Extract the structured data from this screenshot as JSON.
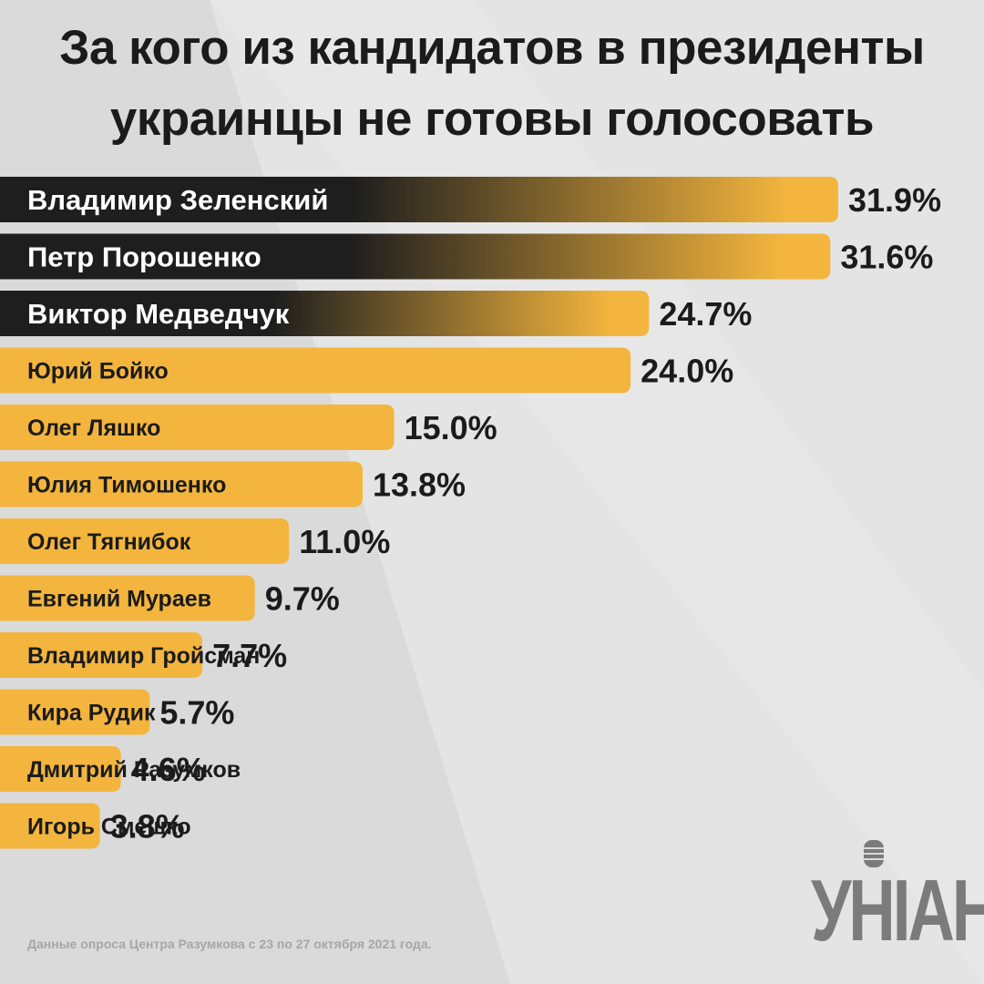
{
  "title_line1": "За кого из кандидатов в президенты",
  "title_line2": "украинцы не готовы голосовать",
  "footnote": "Данные опроса Центра Разумкова с 23 по 27 октября 2021 года.",
  "logo_text": "УНІАН",
  "colors": {
    "bar": "#f3b53d",
    "dark": "#1e1e1e",
    "text": "#1b1b1b",
    "background": "#dadada"
  },
  "chart_data": {
    "type": "bar",
    "orientation": "horizontal",
    "title": "За кого из кандидатов в президенты украинцы не готовы голосовать",
    "categories": [
      "Владимир Зеленский",
      "Петр Порошенко",
      "Виктор Медведчук",
      "Юрий Бойко",
      "Олег Ляшко",
      "Юлия Тимошенко",
      "Олег Тягнибок",
      "Евгений Мураев",
      "Владимир Гройсман",
      "Кира Рудик",
      "Дмитрий Разумков",
      "Игорь Смешко"
    ],
    "values": [
      31.9,
      31.6,
      24.7,
      24.0,
      15.0,
      13.8,
      11.0,
      9.7,
      7.7,
      5.7,
      4.6,
      3.8
    ],
    "value_labels": [
      "31.9%",
      "31.6%",
      "24.7%",
      "24.0%",
      "15.0%",
      "13.8%",
      "11.0%",
      "9.7%",
      "7.7%",
      "5.7%",
      "4.6%",
      "3.8%"
    ],
    "highlighted_top": 3,
    "xlim": [
      0,
      31.9
    ]
  }
}
